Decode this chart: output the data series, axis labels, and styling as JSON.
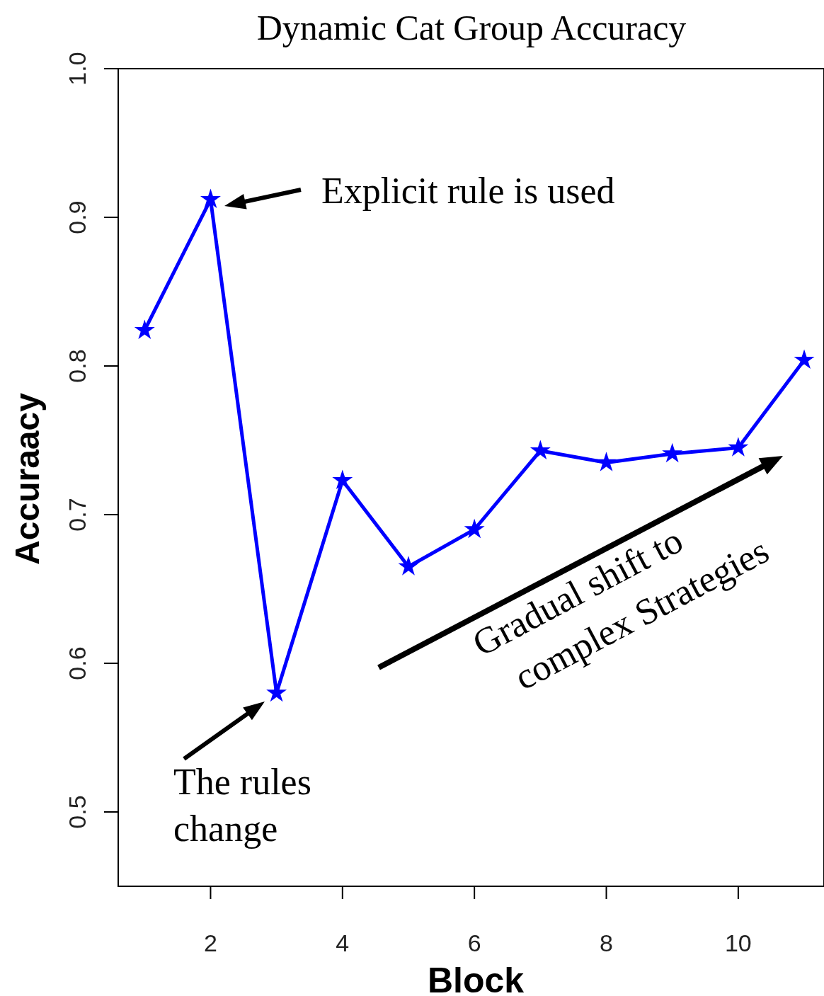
{
  "chart_data": {
    "type": "line",
    "title": "Dynamic Cat Group Accuracy",
    "xlabel": "Block",
    "ylabel": "Accuraacy",
    "x": [
      1,
      2,
      3,
      4,
      5,
      6,
      7,
      8,
      9,
      10,
      11
    ],
    "series": [
      {
        "color": "#0000ff",
        "values": [
          0.824,
          0.912,
          0.58,
          0.723,
          0.665,
          0.69,
          0.743,
          0.735,
          0.741,
          0.745,
          0.804
        ]
      }
    ],
    "xlim": [
      0.6,
      11.3
    ],
    "xticks": [
      2,
      4,
      6,
      8,
      10
    ],
    "ylim": [
      0.45,
      1.0
    ],
    "yticks": [
      0.5,
      0.6,
      0.7,
      0.8,
      0.9,
      {
        "value": 1,
        "label": "1.0"
      }
    ],
    "marker": "star",
    "line_style": "solid",
    "grid": false,
    "annotations": [
      "Explicit rule is used",
      "The rules change",
      "Gradual shift to complex Strategies"
    ]
  }
}
